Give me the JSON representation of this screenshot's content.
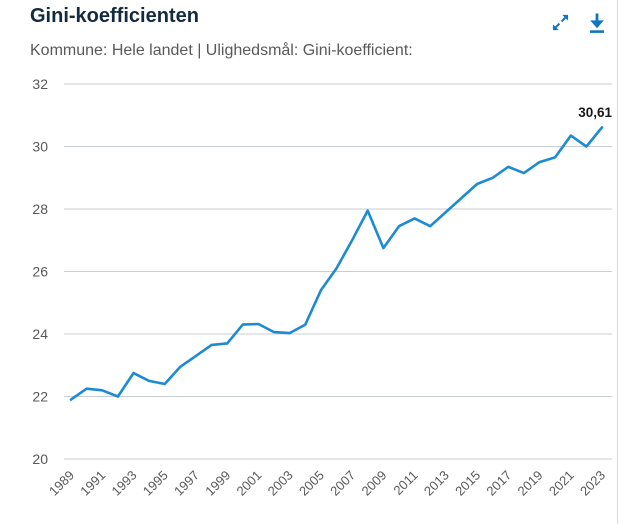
{
  "header": {
    "title": "Gini-koefficienten",
    "subtitle": "Kommune: Hele landet | Ulighedsmål: Gini-koefficient:",
    "icon_color": "#0f76c3",
    "actions": [
      {
        "name": "expand-icon"
      },
      {
        "name": "download-icon"
      }
    ]
  },
  "chart_data": {
    "type": "line",
    "title": "Gini-koefficienten",
    "subtitle": "Kommune: Hele landet | Ulighedsmål: Gini-koefficient:",
    "x": [
      1989,
      1990,
      1991,
      1992,
      1993,
      1994,
      1995,
      1996,
      1997,
      1998,
      1999,
      2000,
      2001,
      2002,
      2003,
      2004,
      2005,
      2006,
      2007,
      2008,
      2009,
      2010,
      2011,
      2012,
      2013,
      2014,
      2015,
      2016,
      2017,
      2018,
      2019,
      2020,
      2021,
      2022,
      2023
    ],
    "values": [
      21.9,
      22.25,
      22.2,
      22.0,
      22.75,
      22.5,
      22.4,
      22.95,
      23.3,
      23.65,
      23.7,
      24.3,
      24.32,
      24.06,
      24.03,
      24.3,
      25.4,
      26.1,
      27.0,
      27.95,
      26.75,
      27.45,
      27.7,
      27.45,
      27.9,
      28.35,
      28.8,
      29.0,
      29.35,
      29.15,
      29.5,
      29.65,
      30.35,
      30.0,
      30.61
    ],
    "x_tick_labels": [
      "1989",
      "1991",
      "1993",
      "1995",
      "1997",
      "1999",
      "2001",
      "2003",
      "2005",
      "2007",
      "2009",
      "2011",
      "2013",
      "2015",
      "2017",
      "2019",
      "2021",
      "2023"
    ],
    "y_ticks": [
      20,
      22,
      24,
      26,
      28,
      30,
      32
    ],
    "ylim": [
      20,
      32
    ],
    "xlabel": "",
    "ylabel": "",
    "grid": true,
    "legend": false,
    "x_label_rotation": -45,
    "line_color": "#1d8bd3",
    "grid_color": "#c9ced4",
    "last_value": 30.61,
    "last_value_label": "30,61"
  }
}
